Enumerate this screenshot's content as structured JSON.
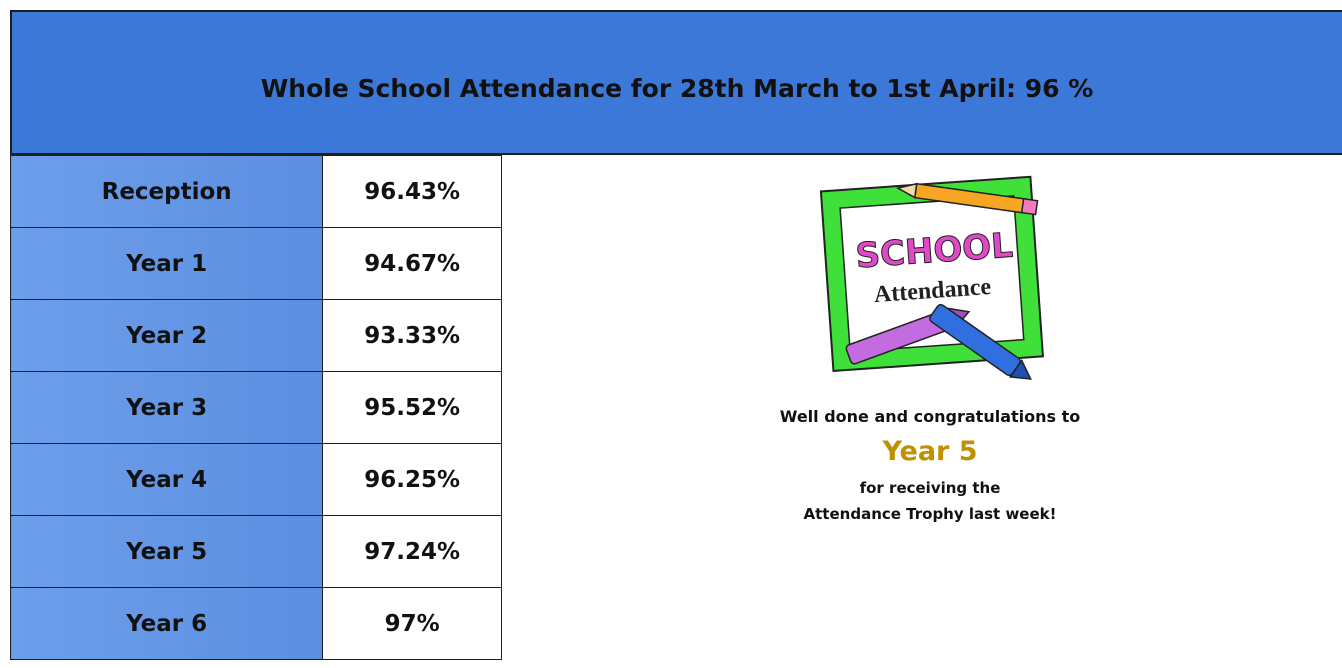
{
  "header": {
    "title": "Whole School Attendance for 28th March to 1st April: 96 %"
  },
  "table": {
    "rows": [
      [
        "Reception",
        "96.43%"
      ],
      [
        "Year 1",
        "94.67%"
      ],
      [
        "Year 2",
        "93.33%"
      ],
      [
        "Year 3",
        "95.52%"
      ],
      [
        "Year 4",
        "96.25%"
      ],
      [
        "Year 5",
        "97.24%"
      ],
      [
        "Year 6",
        "97%"
      ]
    ]
  },
  "notice": {
    "image_text": [
      "SCHOOL",
      "Attendance"
    ],
    "line1": "Well done and congratulations to",
    "winner": "Year 5",
    "line2": "for receiving the",
    "line3": "Attendance Trophy last  week!"
  }
}
